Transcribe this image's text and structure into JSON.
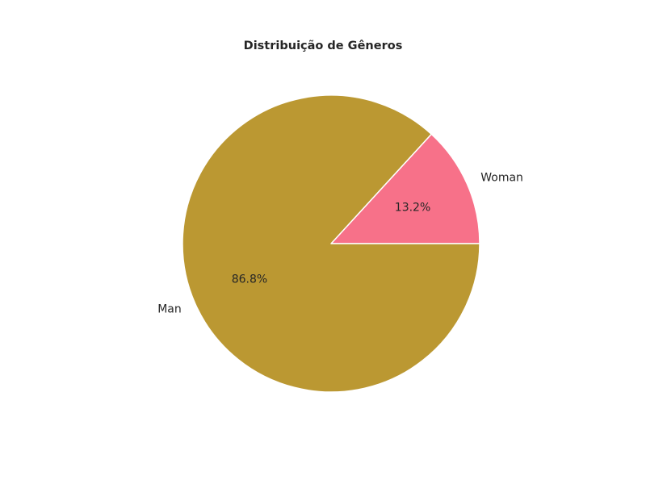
{
  "chart_data": {
    "type": "pie",
    "title": "Distribuição de Gêneros",
    "categories": [
      "Woman",
      "Man"
    ],
    "values": [
      13.2,
      86.8
    ],
    "labels": [
      "13.2%",
      "86.8%"
    ],
    "colors": [
      "#f77189",
      "#bb9832"
    ],
    "start_angle": 0,
    "direction": "counterclockwise",
    "legend": "none",
    "grid": false
  }
}
